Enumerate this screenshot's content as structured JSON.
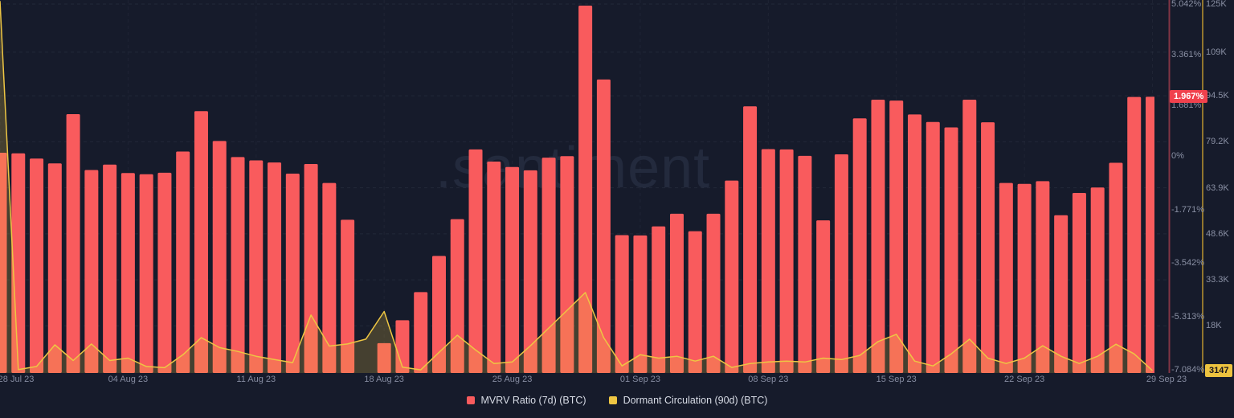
{
  "watermark": ".santiment",
  "colors": {
    "background": "#161b2b",
    "bar": "#f95b5d",
    "line": "#eec643",
    "area_fill": "rgba(238,198,67,0.22)",
    "pct_axis_line": "#833444",
    "btc_axis_line": "#91762e",
    "pct_badge_bg": "#f0414d",
    "btc_badge_bg": "#edc33f",
    "btc_badge_text": "#16141f",
    "tick_text": "#8a90a4",
    "grid": "rgba(150,160,190,0.10)"
  },
  "legend": [
    {
      "label": "MVRV Ratio (7d) (BTC)",
      "color": "#f95b5d"
    },
    {
      "label": "Dormant Circulation (90d) (BTC)",
      "color": "#eec643"
    }
  ],
  "right_axis_pct": {
    "ticks": [
      {
        "label": "5.042%",
        "value": 5.042
      },
      {
        "label": "3.361%",
        "value": 3.361
      },
      {
        "label": "1.681%",
        "value": 1.681
      },
      {
        "label": "0%",
        "value": 0
      },
      {
        "label": "-1.771%",
        "value": -1.771
      },
      {
        "label": "-3.542%",
        "value": -3.542
      },
      {
        "label": "-5.313%",
        "value": -5.313
      },
      {
        "label": "-7.084%",
        "value": -7.084
      }
    ],
    "current": {
      "label": "1.967%",
      "value": 1.967
    }
  },
  "right_axis_btc": {
    "ticks": [
      {
        "label": "125K",
        "value": 125000
      },
      {
        "label": "109K",
        "value": 109000
      },
      {
        "label": "94.5K",
        "value": 94500
      },
      {
        "label": "79.2K",
        "value": 79200
      },
      {
        "label": "63.9K",
        "value": 63900
      },
      {
        "label": "48.6K",
        "value": 48600
      },
      {
        "label": "33.3K",
        "value": 33300
      },
      {
        "label": "18K",
        "value": 18000
      }
    ],
    "current": {
      "label": "3147",
      "value": 3147
    }
  },
  "x_axis": {
    "tick_indices": [
      0,
      7,
      14,
      21,
      28,
      35,
      42,
      49,
      56,
      63
    ]
  },
  "chart_data": {
    "type": "bar",
    "subtype": "bar+area-line dual right axes",
    "grid": true,
    "legend_position": "bottom",
    "pct_axis": {
      "min": -7.084,
      "max": 5.042
    },
    "btc_axis": {
      "min": 3147,
      "max": 125000
    },
    "x": [
      "28 Jul 23",
      "29 Jul 23",
      "30 Jul 23",
      "31 Jul 23",
      "01 Aug 23",
      "02 Aug 23",
      "03 Aug 23",
      "04 Aug 23",
      "05 Aug 23",
      "06 Aug 23",
      "07 Aug 23",
      "08 Aug 23",
      "09 Aug 23",
      "10 Aug 23",
      "11 Aug 23",
      "12 Aug 23",
      "13 Aug 23",
      "14 Aug 23",
      "15 Aug 23",
      "16 Aug 23",
      "17 Aug 23",
      "18 Aug 23",
      "19 Aug 23",
      "20 Aug 23",
      "21 Aug 23",
      "22 Aug 23",
      "23 Aug 23",
      "24 Aug 23",
      "25 Aug 23",
      "26 Aug 23",
      "27 Aug 23",
      "28 Aug 23",
      "29 Aug 23",
      "30 Aug 23",
      "31 Aug 23",
      "01 Sep 23",
      "02 Sep 23",
      "03 Sep 23",
      "04 Sep 23",
      "05 Sep 23",
      "06 Sep 23",
      "07 Sep 23",
      "08 Sep 23",
      "09 Sep 23",
      "10 Sep 23",
      "11 Sep 23",
      "12 Sep 23",
      "13 Sep 23",
      "14 Sep 23",
      "15 Sep 23",
      "16 Sep 23",
      "17 Sep 23",
      "18 Sep 23",
      "19 Sep 23",
      "20 Sep 23",
      "21 Sep 23",
      "22 Sep 23",
      "23 Sep 23",
      "24 Sep 23",
      "25 Sep 23",
      "26 Sep 23",
      "27 Sep 23",
      "28 Sep 23",
      "29 Sep 23"
    ],
    "series": [
      {
        "name": "MVRV Ratio (7d) (BTC)",
        "type": "bar",
        "unit": "%",
        "color": "#f95b5d",
        "values": [
          0.11,
          0.09,
          -0.08,
          -0.24,
          1.39,
          -0.46,
          -0.28,
          -0.56,
          -0.6,
          -0.55,
          0.15,
          1.49,
          0.5,
          -0.03,
          -0.14,
          -0.21,
          -0.58,
          -0.26,
          -0.89,
          -2.11,
          null,
          -6.2,
          -5.44,
          -4.51,
          -3.31,
          -2.09,
          0.22,
          -0.18,
          -0.36,
          -0.47,
          -0.05,
          0.0,
          4.99,
          2.54,
          -2.62,
          -2.63,
          -2.33,
          -1.91,
          -2.49,
          -1.91,
          -0.81,
          1.65,
          0.23,
          0.22,
          0.01,
          -2.13,
          0.06,
          1.25,
          1.87,
          1.84,
          1.38,
          1.13,
          0.95,
          1.87,
          1.12,
          -0.89,
          -0.92,
          -0.83,
          -1.96,
          -1.22,
          -1.04,
          -0.22,
          1.96,
          1.967
        ]
      },
      {
        "name": "Dormant Circulation (90d) (BTC)",
        "type": "area-line",
        "unit": "BTC",
        "color": "#eec643",
        "values": [
          126000,
          3500,
          4500,
          11700,
          6500,
          12000,
          6500,
          7300,
          4500,
          4100,
          8400,
          14100,
          10800,
          9500,
          7900,
          6800,
          5800,
          21600,
          11300,
          12000,
          13600,
          22800,
          4300,
          3400,
          9200,
          14900,
          10000,
          5500,
          6000,
          11400,
          17300,
          23200,
          29100,
          14100,
          4700,
          8400,
          7300,
          7900,
          6300,
          7900,
          4200,
          5500,
          6000,
          6300,
          6000,
          7300,
          6800,
          8200,
          12800,
          15200,
          6300,
          4700,
          8700,
          13600,
          7300,
          5500,
          7300,
          11400,
          7900,
          5500,
          7900,
          11900,
          8700,
          3147
        ]
      }
    ]
  }
}
